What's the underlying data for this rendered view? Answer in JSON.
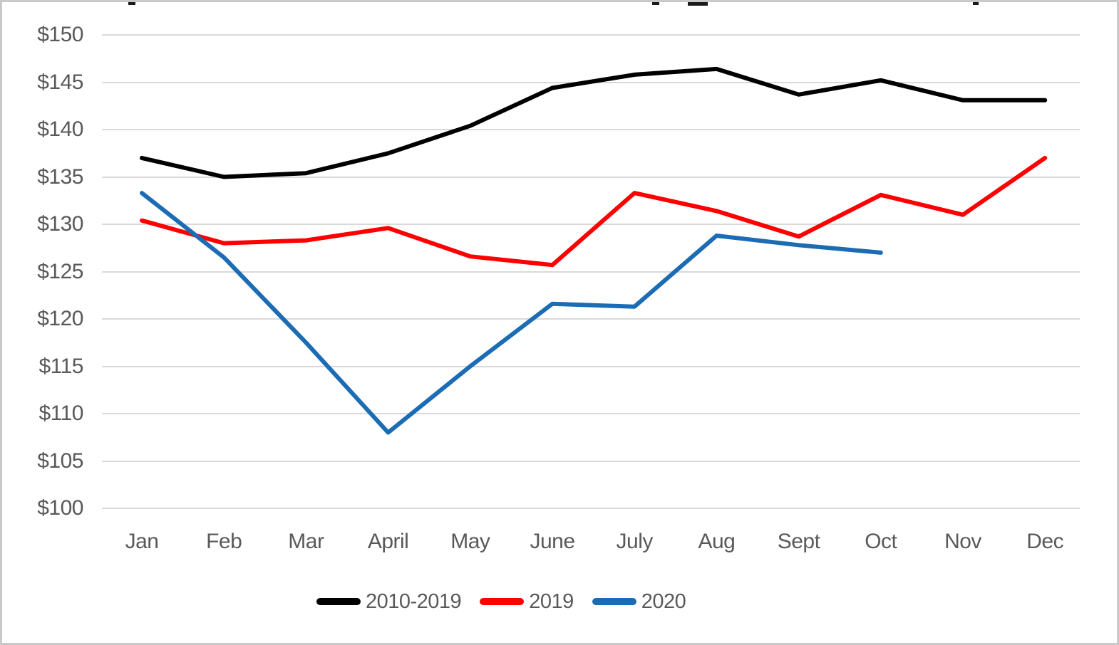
{
  "chart_data": {
    "type": "line",
    "categories": [
      "Jan",
      "Feb",
      "Mar",
      "April",
      "May",
      "June",
      "July",
      "Aug",
      "Sept",
      "Oct",
      "Nov",
      "Dec"
    ],
    "y_ticks": [
      "$150",
      "$145",
      "$140",
      "$135",
      "$130",
      "$125",
      "$120",
      "$115",
      "$110",
      "$105",
      "$100"
    ],
    "ylim": [
      100,
      150
    ],
    "y_step": 5,
    "grid": true,
    "legend_position": "bottom",
    "series": [
      {
        "name": "2010-2019",
        "color": "#000000",
        "values": [
          137.0,
          135.0,
          135.4,
          137.5,
          140.4,
          144.4,
          145.8,
          146.4,
          143.7,
          145.2,
          143.1,
          143.1
        ]
      },
      {
        "name": "2019",
        "color": "#ff0000",
        "values": [
          130.4,
          128.0,
          128.3,
          129.6,
          126.6,
          125.7,
          133.3,
          131.4,
          128.7,
          133.1,
          131.0,
          137.0
        ]
      },
      {
        "name": "2020",
        "color": "#1b6cb4",
        "values": [
          133.3,
          126.5,
          117.5,
          108.0,
          115.0,
          121.6,
          121.3,
          128.8,
          127.8,
          127.0,
          null,
          null
        ]
      }
    ],
    "colors": {
      "axis_text": "#595959",
      "gridline": "#d9d9d9",
      "frame_border": "#c9c9c9"
    }
  }
}
